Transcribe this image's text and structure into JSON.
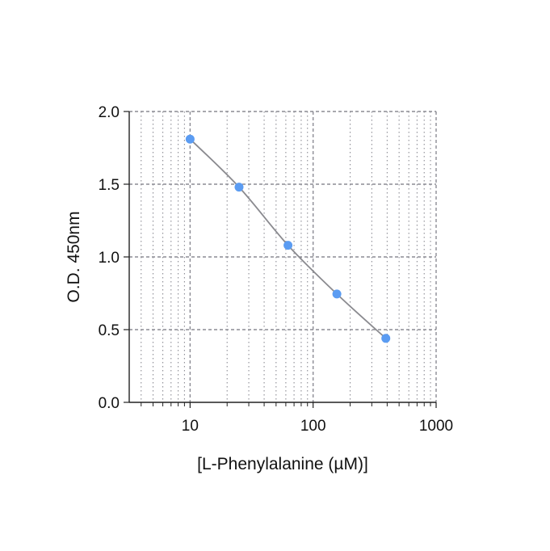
{
  "chart_data": {
    "type": "scatter",
    "title": "",
    "xlabel": "[L-Phenylalanine (µM)]",
    "ylabel": "O.D. 450nm",
    "x_scale": "log",
    "xlim": [
      3.2,
      1000
    ],
    "ylim": [
      0,
      2.0
    ],
    "x_ticks": [
      10,
      100,
      1000
    ],
    "x_tick_labels": [
      "10",
      "100",
      "1000"
    ],
    "y_ticks": [
      0,
      0.5,
      1.0,
      1.5,
      2.0
    ],
    "y_tick_labels": [
      "0.0",
      "0.5",
      "1.0",
      "1.5",
      "2.0"
    ],
    "grid": true,
    "fit_curve": true,
    "series": [
      {
        "x": [
          10,
          25,
          62.5,
          156,
          390
        ],
        "y": [
          1.81,
          1.48,
          1.08,
          0.745,
          0.44
        ]
      }
    ],
    "colors": {
      "point": "#5b9cf2",
      "line": "#8a8a8f",
      "grid": "#8c8c94",
      "axis": "#222222"
    }
  }
}
